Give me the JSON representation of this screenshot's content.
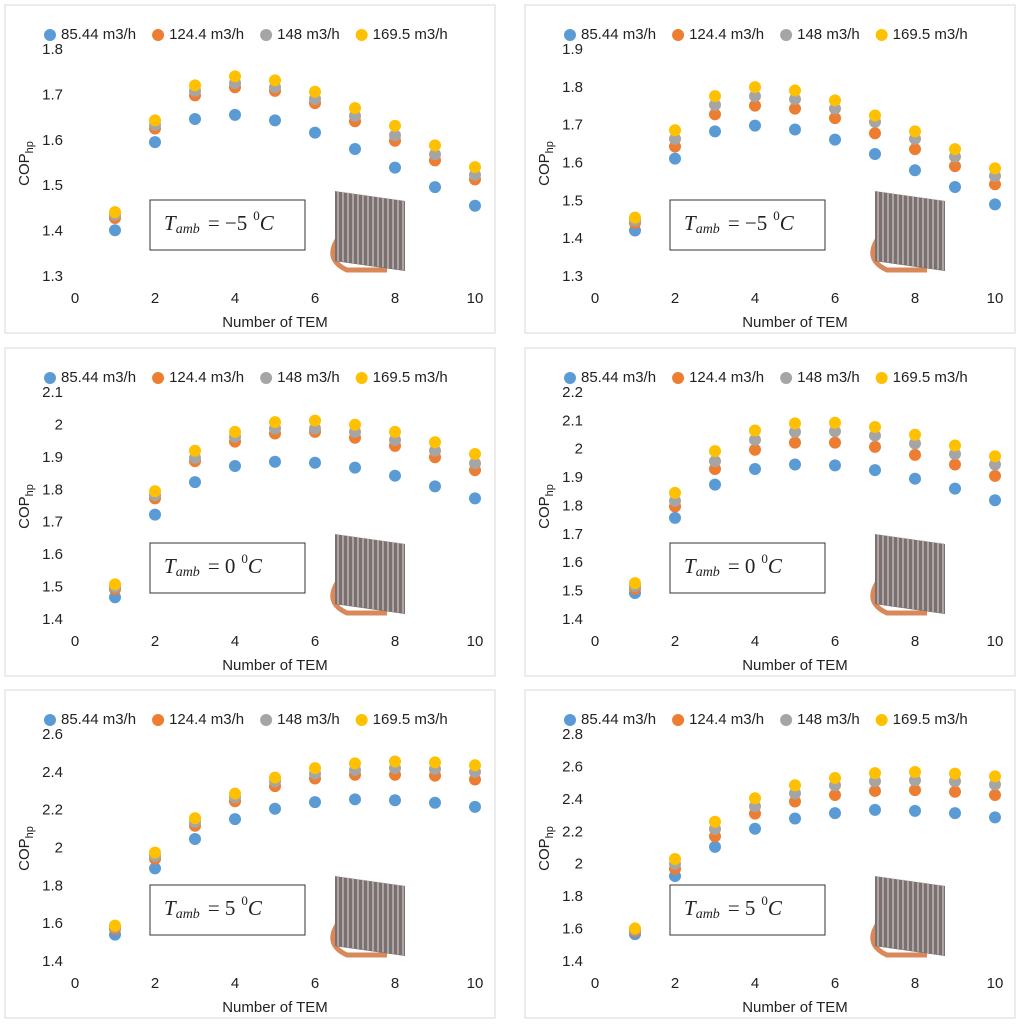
{
  "chart_data": [
    {
      "type": "scatter",
      "xlabel": "Number of TEM",
      "ylabel": "COP",
      "ylabel_subscript": "hp",
      "annotation": {
        "symbol": "T",
        "subscript": "amb",
        "relation": "= −5",
        "superscript": "0",
        "unit": "C"
      },
      "x": [
        1,
        2,
        3,
        4,
        5,
        6,
        7,
        8,
        9,
        10
      ],
      "xlim": [
        0,
        10
      ],
      "xticks": [
        0,
        2,
        4,
        6,
        8,
        10
      ],
      "ylim": [
        1.3,
        1.8
      ],
      "yticks": [
        1.3,
        1.4,
        1.5,
        1.6,
        1.7,
        1.8
      ],
      "series": [
        {
          "name": "85.44 m3/h",
          "color": "#5b9bd5",
          "values": [
            1.403,
            1.597,
            1.648,
            1.657,
            1.645,
            1.618,
            1.582,
            1.541,
            1.498,
            1.457
          ]
        },
        {
          "name": "124.4 m3/h",
          "color": "#ed7d31",
          "values": [
            1.43,
            1.627,
            1.7,
            1.718,
            1.71,
            1.683,
            1.643,
            1.6,
            1.557,
            1.515
          ]
        },
        {
          "name": "148 m3/h",
          "color": "#a5a5a5",
          "values": [
            1.437,
            1.635,
            1.71,
            1.727,
            1.718,
            1.692,
            1.655,
            1.612,
            1.57,
            1.525
          ]
        },
        {
          "name": "169.5 m3/h",
          "color": "#ffc000",
          "values": [
            1.443,
            1.645,
            1.722,
            1.742,
            1.733,
            1.708,
            1.672,
            1.633,
            1.59,
            1.542
          ]
        }
      ]
    },
    {
      "type": "scatter",
      "xlabel": "Number of TEM",
      "ylabel": "COP",
      "ylabel_subscript": "hp",
      "annotation": {
        "symbol": "T",
        "subscript": "amb",
        "relation": "= −5",
        "superscript": "0",
        "unit": "C"
      },
      "x": [
        1,
        2,
        3,
        4,
        5,
        6,
        7,
        8,
        9,
        10
      ],
      "xlim": [
        0,
        10
      ],
      "xticks": [
        0,
        2,
        4,
        6,
        8,
        10
      ],
      "ylim": [
        1.3,
        1.9
      ],
      "yticks": [
        1.3,
        1.4,
        1.5,
        1.6,
        1.7,
        1.8,
        1.9
      ],
      "series": [
        {
          "name": "85.44 m3/h",
          "color": "#5b9bd5",
          "values": [
            1.423,
            1.613,
            1.685,
            1.7,
            1.69,
            1.663,
            1.625,
            1.582,
            1.538,
            1.492
          ]
        },
        {
          "name": "124.4 m3/h",
          "color": "#ed7d31",
          "values": [
            1.443,
            1.645,
            1.73,
            1.753,
            1.745,
            1.72,
            1.68,
            1.638,
            1.593,
            1.545
          ]
        },
        {
          "name": "148 m3/h",
          "color": "#a5a5a5",
          "values": [
            1.45,
            1.665,
            1.755,
            1.778,
            1.77,
            1.745,
            1.71,
            1.665,
            1.618,
            1.567
          ]
        },
        {
          "name": "169.5 m3/h",
          "color": "#ffc000",
          "values": [
            1.457,
            1.688,
            1.778,
            1.802,
            1.793,
            1.767,
            1.727,
            1.685,
            1.638,
            1.587
          ]
        }
      ]
    },
    {
      "type": "scatter",
      "xlabel": "Number of TEM",
      "ylabel": "COP",
      "ylabel_subscript": "hp",
      "annotation": {
        "symbol": "T",
        "subscript": "amb",
        "relation": "= 0",
        "superscript": "0",
        "unit": "C"
      },
      "x": [
        1,
        2,
        3,
        4,
        5,
        6,
        7,
        8,
        9,
        10
      ],
      "xlim": [
        0,
        10
      ],
      "xticks": [
        0,
        2,
        4,
        6,
        8,
        10
      ],
      "ylim": [
        1.4,
        2.1
      ],
      "yticks": [
        1.4,
        1.5,
        1.6,
        1.7,
        1.8,
        1.9,
        2,
        2.1
      ],
      "series": [
        {
          "name": "85.44 m3/h",
          "color": "#5b9bd5",
          "values": [
            1.47,
            1.725,
            1.825,
            1.875,
            1.888,
            1.885,
            1.87,
            1.845,
            1.812,
            1.775
          ]
        },
        {
          "name": "124.4 m3/h",
          "color": "#ed7d31",
          "values": [
            1.495,
            1.775,
            1.89,
            1.95,
            1.975,
            1.98,
            1.962,
            1.937,
            1.902,
            1.862
          ]
        },
        {
          "name": "148 m3/h",
          "color": "#a5a5a5",
          "values": [
            1.502,
            1.785,
            1.9,
            1.965,
            1.99,
            1.99,
            1.98,
            1.955,
            1.922,
            1.883
          ]
        },
        {
          "name": "169.5 m3/h",
          "color": "#ffc000",
          "values": [
            1.51,
            1.797,
            1.922,
            1.98,
            2.01,
            2.015,
            2.002,
            1.98,
            1.948,
            1.912
          ]
        }
      ]
    },
    {
      "type": "scatter",
      "xlabel": "Number of TEM",
      "ylabel": "COP",
      "ylabel_subscript": "hp",
      "annotation": {
        "symbol": "T",
        "subscript": "amb",
        "relation": "= 0",
        "superscript": "0",
        "unit": "C"
      },
      "x": [
        1,
        2,
        3,
        4,
        5,
        6,
        7,
        8,
        9,
        10
      ],
      "xlim": [
        0,
        10
      ],
      "xticks": [
        0,
        2,
        4,
        6,
        8,
        10
      ],
      "ylim": [
        1.4,
        2.2
      ],
      "yticks": [
        1.4,
        1.5,
        1.6,
        1.7,
        1.8,
        1.9,
        2,
        2.1,
        2.2
      ],
      "series": [
        {
          "name": "85.44 m3/h",
          "color": "#5b9bd5",
          "values": [
            1.495,
            1.76,
            1.877,
            1.932,
            1.948,
            1.945,
            1.928,
            1.898,
            1.863,
            1.822
          ]
        },
        {
          "name": "124.4 m3/h",
          "color": "#ed7d31",
          "values": [
            1.51,
            1.8,
            1.932,
            2,
            2.025,
            2.025,
            2.01,
            1.982,
            1.948,
            1.908
          ]
        },
        {
          "name": "148 m3/h",
          "color": "#a5a5a5",
          "values": [
            1.52,
            1.82,
            1.96,
            2.035,
            2.063,
            2.065,
            2.05,
            2.022,
            1.985,
            1.948
          ]
        },
        {
          "name": "169.5 m3/h",
          "color": "#ffc000",
          "values": [
            1.53,
            1.848,
            1.995,
            2.068,
            2.093,
            2.095,
            2.08,
            2.053,
            2.015,
            1.977
          ]
        }
      ]
    },
    {
      "type": "scatter",
      "xlabel": "Number of TEM",
      "ylabel": "COP",
      "ylabel_subscript": "hp",
      "annotation": {
        "symbol": "T",
        "subscript": "amb",
        "relation": "= 5",
        "superscript": "0",
        "unit": "C"
      },
      "x": [
        1,
        2,
        3,
        4,
        5,
        6,
        7,
        8,
        9,
        10
      ],
      "xlim": [
        0,
        10
      ],
      "xticks": [
        0,
        2,
        4,
        6,
        8,
        10
      ],
      "ylim": [
        1.4,
        2.6
      ],
      "yticks": [
        1.4,
        1.6,
        1.8,
        2,
        2.2,
        2.4,
        2.6
      ],
      "series": [
        {
          "name": "85.44 m3/h",
          "color": "#5b9bd5",
          "values": [
            1.545,
            1.895,
            2.05,
            2.155,
            2.21,
            2.245,
            2.26,
            2.255,
            2.242,
            2.22
          ]
        },
        {
          "name": "124.4 m3/h",
          "color": "#ed7d31",
          "values": [
            1.575,
            1.945,
            2.12,
            2.25,
            2.33,
            2.37,
            2.39,
            2.39,
            2.385,
            2.365
          ]
        },
        {
          "name": "148 m3/h",
          "color": "#a5a5a5",
          "values": [
            1.585,
            1.96,
            2.14,
            2.27,
            2.355,
            2.395,
            2.415,
            2.425,
            2.42,
            2.405
          ]
        },
        {
          "name": "169.5 m3/h",
          "color": "#ffc000",
          "values": [
            1.592,
            1.978,
            2.16,
            2.29,
            2.375,
            2.425,
            2.45,
            2.46,
            2.455,
            2.44
          ]
        }
      ]
    },
    {
      "type": "scatter",
      "xlabel": "Number of TEM",
      "ylabel": "COP",
      "ylabel_subscript": "hp",
      "annotation": {
        "symbol": "T",
        "subscript": "amb",
        "relation": "= 5",
        "superscript": "0",
        "unit": "C"
      },
      "x": [
        1,
        2,
        3,
        4,
        5,
        6,
        7,
        8,
        9,
        10
      ],
      "xlim": [
        0,
        10
      ],
      "xticks": [
        0,
        2,
        4,
        6,
        8,
        10
      ],
      "ylim": [
        1.4,
        2.8
      ],
      "yticks": [
        1.4,
        1.6,
        1.8,
        2,
        2.2,
        2.4,
        2.6,
        2.8
      ],
      "series": [
        {
          "name": "85.44 m3/h",
          "color": "#5b9bd5",
          "values": [
            1.572,
            1.93,
            2.11,
            2.222,
            2.285,
            2.318,
            2.338,
            2.332,
            2.318,
            2.292
          ]
        },
        {
          "name": "124.4 m3/h",
          "color": "#ed7d31",
          "values": [
            1.59,
            1.975,
            2.175,
            2.315,
            2.39,
            2.43,
            2.455,
            2.46,
            2.45,
            2.43
          ]
        },
        {
          "name": "148 m3/h",
          "color": "#a5a5a5",
          "values": [
            1.6,
            2.005,
            2.22,
            2.36,
            2.44,
            2.49,
            2.515,
            2.52,
            2.515,
            2.495
          ]
        },
        {
          "name": "169.5 m3/h",
          "color": "#ffc000",
          "values": [
            1.607,
            2.035,
            2.265,
            2.41,
            2.49,
            2.535,
            2.565,
            2.572,
            2.562,
            2.545
          ]
        }
      ]
    }
  ]
}
